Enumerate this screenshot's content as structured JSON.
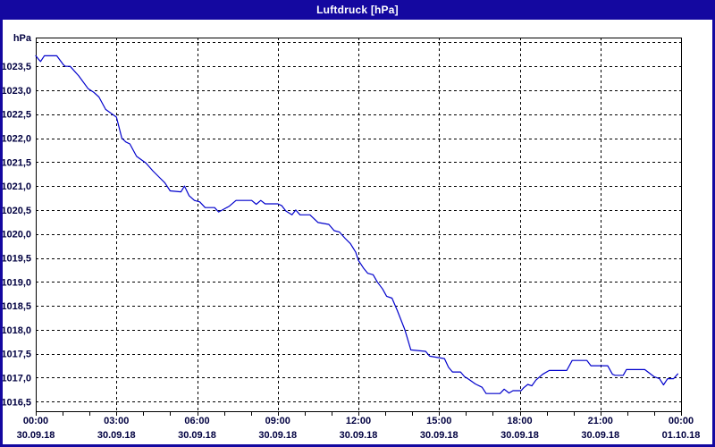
{
  "window": {
    "title": "Luftdruck [hPa]"
  },
  "colors": {
    "title_bar": "#1408a0",
    "title_text": "#ffffff",
    "panel_background": "#ffffff",
    "line": "#0000cc",
    "grid": "#000000",
    "frame": "#000000",
    "axis_label": "#000040"
  },
  "chart_data": {
    "type": "line",
    "title": "Luftdruck [hPa]",
    "ylabel": "hPa",
    "grid": "dashed",
    "legend_position": "none",
    "y_axis": {
      "render_min": 1016.3,
      "render_max": 1024.1,
      "gridline_step": 0.5,
      "gridlines": [
        {
          "value": 1024.0,
          "label": ""
        },
        {
          "value": 1023.5,
          "label": "1023,5"
        },
        {
          "value": 1023.0,
          "label": "1023,0"
        },
        {
          "value": 1022.5,
          "label": "1022,5"
        },
        {
          "value": 1022.0,
          "label": "1022,0"
        },
        {
          "value": 1021.5,
          "label": "1021,5"
        },
        {
          "value": 1021.0,
          "label": "1021,0"
        },
        {
          "value": 1020.5,
          "label": "1020,5"
        },
        {
          "value": 1020.0,
          "label": "1020,0"
        },
        {
          "value": 1019.5,
          "label": "1019,5"
        },
        {
          "value": 1019.0,
          "label": "1019,0"
        },
        {
          "value": 1018.5,
          "label": "1018,5"
        },
        {
          "value": 1018.0,
          "label": "1018,0"
        },
        {
          "value": 1017.5,
          "label": "1017,5"
        },
        {
          "value": 1017.0,
          "label": "1017,0"
        },
        {
          "value": 1016.5,
          "label": "1016,5"
        }
      ]
    },
    "x_axis": {
      "min_hours": 0,
      "max_hours": 24,
      "minor_tick_step_hours": 1,
      "gridline_hours": [
        3,
        6,
        9,
        12,
        15,
        18,
        21
      ],
      "ticks": [
        {
          "hours": 0,
          "time": "00:00",
          "date": "30.09.18"
        },
        {
          "hours": 3,
          "time": "03:00",
          "date": "30.09.18"
        },
        {
          "hours": 6,
          "time": "06:00",
          "date": "30.09.18"
        },
        {
          "hours": 9,
          "time": "09:00",
          "date": "30.09.18"
        },
        {
          "hours": 12,
          "time": "12:00",
          "date": "30.09.18"
        },
        {
          "hours": 15,
          "time": "15:00",
          "date": "30.09.18"
        },
        {
          "hours": 18,
          "time": "18:00",
          "date": "30.09.18"
        },
        {
          "hours": 21,
          "time": "21:00",
          "date": "30.09.18"
        },
        {
          "hours": 24,
          "time": "00:00",
          "date": "01.10.18"
        }
      ]
    },
    "series": [
      {
        "name": "Luftdruck",
        "unit": "hPa",
        "color": "#0000cc",
        "points": [
          [
            0.0,
            1023.72
          ],
          [
            0.1,
            1023.65
          ],
          [
            0.18,
            1023.6
          ],
          [
            0.32,
            1023.72
          ],
          [
            0.78,
            1023.72
          ],
          [
            1.03,
            1023.53
          ],
          [
            1.1,
            1023.5
          ],
          [
            1.28,
            1023.5
          ],
          [
            1.6,
            1023.3
          ],
          [
            1.95,
            1023.03
          ],
          [
            2.15,
            1022.96
          ],
          [
            2.35,
            1022.86
          ],
          [
            2.6,
            1022.6
          ],
          [
            2.85,
            1022.5
          ],
          [
            3.0,
            1022.44
          ],
          [
            3.2,
            1022.0
          ],
          [
            3.35,
            1021.92
          ],
          [
            3.5,
            1021.88
          ],
          [
            3.75,
            1021.62
          ],
          [
            4.1,
            1021.48
          ],
          [
            4.35,
            1021.32
          ],
          [
            4.6,
            1021.18
          ],
          [
            4.8,
            1021.07
          ],
          [
            5.0,
            1020.9
          ],
          [
            5.4,
            1020.88
          ],
          [
            5.53,
            1021.0
          ],
          [
            5.7,
            1020.8
          ],
          [
            5.9,
            1020.7
          ],
          [
            6.1,
            1020.67
          ],
          [
            6.3,
            1020.55
          ],
          [
            6.65,
            1020.55
          ],
          [
            6.8,
            1020.46
          ],
          [
            7.0,
            1020.52
          ],
          [
            7.2,
            1020.58
          ],
          [
            7.45,
            1020.7
          ],
          [
            8.03,
            1020.7
          ],
          [
            8.2,
            1020.62
          ],
          [
            8.37,
            1020.7
          ],
          [
            8.53,
            1020.63
          ],
          [
            9.0,
            1020.63
          ],
          [
            9.15,
            1020.59
          ],
          [
            9.3,
            1020.48
          ],
          [
            9.53,
            1020.4
          ],
          [
            9.67,
            1020.5
          ],
          [
            9.83,
            1020.4
          ],
          [
            10.2,
            1020.4
          ],
          [
            10.5,
            1020.24
          ],
          [
            10.9,
            1020.2
          ],
          [
            11.1,
            1020.07
          ],
          [
            11.3,
            1020.04
          ],
          [
            11.5,
            1019.91
          ],
          [
            11.7,
            1019.8
          ],
          [
            11.9,
            1019.62
          ],
          [
            12.0,
            1019.45
          ],
          [
            12.2,
            1019.28
          ],
          [
            12.35,
            1019.18
          ],
          [
            12.55,
            1019.15
          ],
          [
            12.7,
            1019.0
          ],
          [
            12.9,
            1018.85
          ],
          [
            13.05,
            1018.7
          ],
          [
            13.25,
            1018.66
          ],
          [
            13.45,
            1018.4
          ],
          [
            13.73,
            1018.0
          ],
          [
            13.95,
            1017.58
          ],
          [
            14.5,
            1017.55
          ],
          [
            14.65,
            1017.45
          ],
          [
            15.2,
            1017.4
          ],
          [
            15.35,
            1017.22
          ],
          [
            15.5,
            1017.12
          ],
          [
            15.8,
            1017.12
          ],
          [
            15.95,
            1017.02
          ],
          [
            16.1,
            1016.97
          ],
          [
            16.35,
            1016.87
          ],
          [
            16.6,
            1016.8
          ],
          [
            16.75,
            1016.67
          ],
          [
            17.27,
            1016.67
          ],
          [
            17.42,
            1016.76
          ],
          [
            17.6,
            1016.68
          ],
          [
            17.75,
            1016.73
          ],
          [
            18.05,
            1016.73
          ],
          [
            18.15,
            1016.79
          ],
          [
            18.3,
            1016.86
          ],
          [
            18.45,
            1016.83
          ],
          [
            18.6,
            1016.95
          ],
          [
            18.85,
            1017.07
          ],
          [
            19.1,
            1017.15
          ],
          [
            19.75,
            1017.15
          ],
          [
            19.95,
            1017.36
          ],
          [
            20.5,
            1017.36
          ],
          [
            20.65,
            1017.25
          ],
          [
            21.27,
            1017.25
          ],
          [
            21.45,
            1017.07
          ],
          [
            21.55,
            1017.05
          ],
          [
            21.85,
            1017.05
          ],
          [
            21.97,
            1017.17
          ],
          [
            22.65,
            1017.17
          ],
          [
            23.0,
            1017.02
          ],
          [
            23.2,
            1016.98
          ],
          [
            23.35,
            1016.85
          ],
          [
            23.5,
            1016.98
          ],
          [
            23.72,
            1016.98
          ],
          [
            23.88,
            1017.08
          ]
        ]
      }
    ]
  }
}
